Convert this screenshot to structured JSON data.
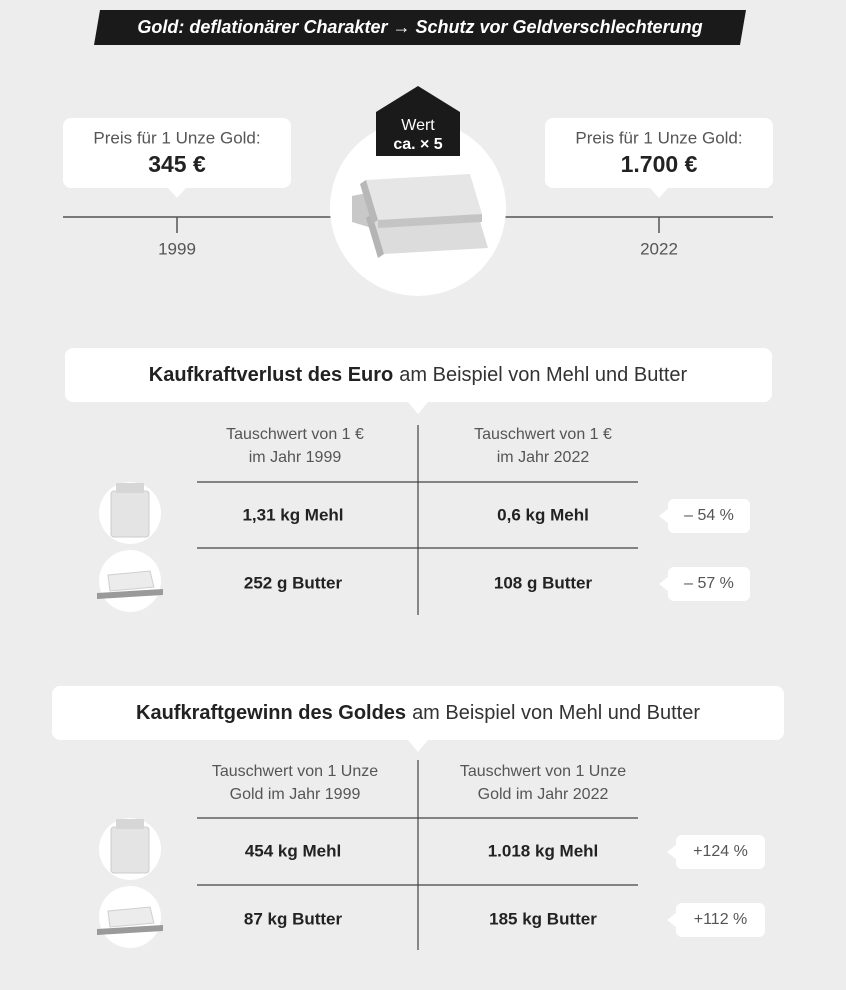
{
  "header": {
    "title": "Gold: deflationärer Charakter → Schutz vor Geldverschlechterung"
  },
  "timeline": {
    "left": {
      "label": "Preis für 1 Unze Gold:",
      "price": "345 €",
      "year": "1999"
    },
    "badge": {
      "line1": "Wert",
      "line2": "ca. × 5"
    },
    "right": {
      "label": "Preis für 1 Unze Gold:",
      "price": "1.700 €",
      "year": "2022"
    }
  },
  "sections": [
    {
      "title_bold": "Kaufkraftverlust des Euro",
      "title_rest": "am Beispiel von Mehl und Butter",
      "col_headers": [
        [
          "Tauschwert von 1 €",
          "im Jahr 1999"
        ],
        [
          "Tauschwert von 1 €",
          "im Jahr 2022"
        ]
      ],
      "rows": [
        [
          "1,31 kg Mehl",
          "0,6 kg Mehl",
          "– 54 %"
        ],
        [
          "252 g Butter",
          "108 g Butter",
          "– 57 %"
        ]
      ]
    },
    {
      "title_bold": "Kaufkraftgewinn des Goldes",
      "title_rest": "am Beispiel von Mehl und Butter",
      "col_headers": [
        [
          "Tauschwert von 1 Unze",
          "Gold im Jahr 1999"
        ],
        [
          "Tauschwert von 1 Unze",
          "Gold im Jahr 2022"
        ]
      ],
      "rows": [
        [
          "454 kg Mehl",
          "1.018 kg Mehl",
          "+124 %"
        ],
        [
          "87 kg Butter",
          "185 kg Butter",
          "+112 %"
        ]
      ]
    }
  ]
}
